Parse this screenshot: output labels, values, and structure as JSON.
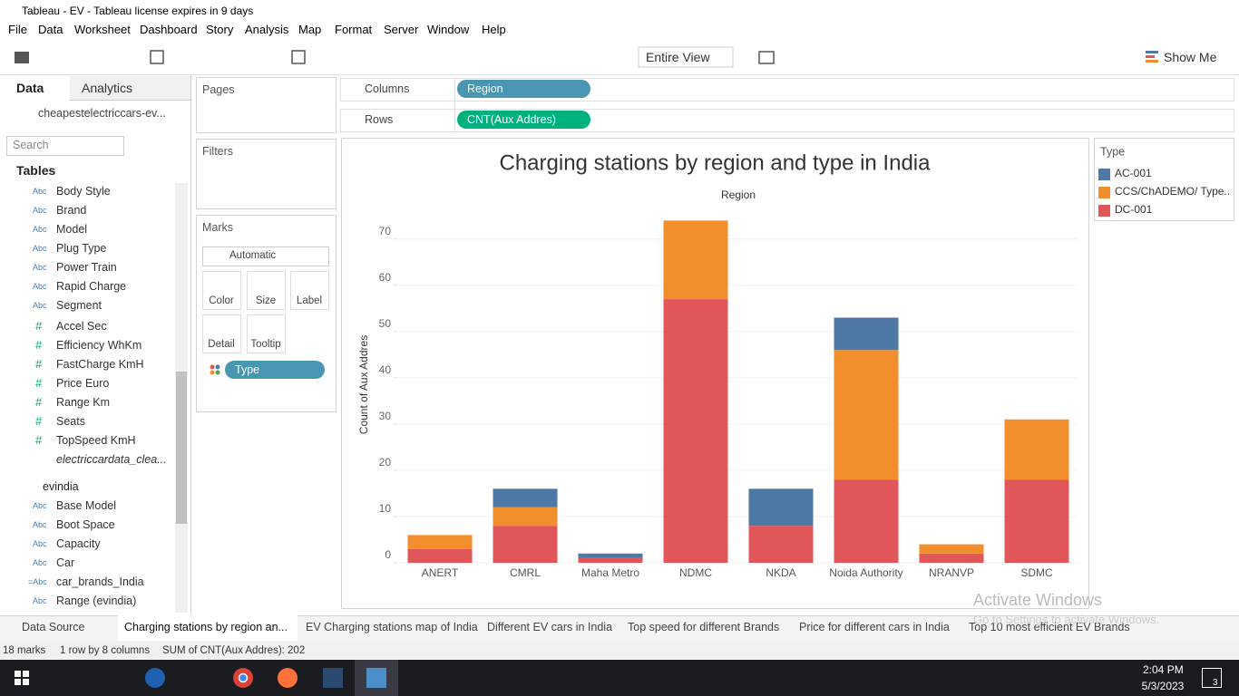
{
  "window": {
    "title": "Tableau - EV - Tableau license expires in 9 days"
  },
  "menu": [
    "File",
    "Data",
    "Worksheet",
    "Dashboard",
    "Story",
    "Analysis",
    "Map",
    "Format",
    "Server",
    "Window",
    "Help"
  ],
  "toolbar": {
    "fit": "Entire View",
    "show_me": "Show Me"
  },
  "data_pane": {
    "tabs": [
      "Data",
      "Analytics"
    ],
    "data_source": "cheapestelectriccars-ev...",
    "search": "Search",
    "tables_heading": "Tables",
    "fields": [
      {
        "icon": "Abc",
        "name": "Body Style"
      },
      {
        "icon": "Abc",
        "name": "Brand"
      },
      {
        "icon": "Abc",
        "name": "Model"
      },
      {
        "icon": "Abc",
        "name": "Plug Type"
      },
      {
        "icon": "Abc",
        "name": "Power Train"
      },
      {
        "icon": "Abc",
        "name": "Rapid Charge"
      },
      {
        "icon": "Abc",
        "name": "Segment"
      },
      {
        "icon": "#",
        "name": "Accel Sec"
      },
      {
        "icon": "#",
        "name": "Efficiency WhKm"
      },
      {
        "icon": "#",
        "name": "FastCharge KmH"
      },
      {
        "icon": "#",
        "name": "Price Euro"
      },
      {
        "icon": "#",
        "name": "Range Km"
      },
      {
        "icon": "#",
        "name": "Seats"
      },
      {
        "icon": "#",
        "name": "TopSpeed KmH"
      },
      {
        "name": "electriccardata_clea..."
      }
    ],
    "table2": "evindia",
    "fields2": [
      {
        "icon": "Abc",
        "name": "Base Model"
      },
      {
        "icon": "Abc",
        "name": "Boot Space"
      },
      {
        "icon": "Abc",
        "name": "Capacity"
      },
      {
        "icon": "Abc",
        "name": "Car"
      },
      {
        "icon": "=Abc",
        "name": "car_brands_India"
      },
      {
        "icon": "Abc",
        "name": "Range (evindia)"
      }
    ]
  },
  "shelves": {
    "pages": "Pages",
    "filters": "Filters",
    "marks": "Marks",
    "mark_type": "Automatic",
    "mark_buttons": [
      "Color",
      "Size",
      "Label",
      "Detail",
      "Tooltip"
    ],
    "type_pill": "Type",
    "columns": "Columns",
    "columns_pill": "Region",
    "rows": "Rows",
    "rows_pill": "CNT(Aux Addres)"
  },
  "chart_data": {
    "type": "bar",
    "stacked": true,
    "title": "Charging stations by region and type in India",
    "x_label": "Region",
    "y_label": "Count of Aux Addres",
    "legend_title": "Type",
    "categories": [
      "ANERT",
      "CMRL",
      "Maha Metro",
      "NDMC",
      "NKDA",
      "Noida Authority",
      "NRANVP",
      "SDMC"
    ],
    "series": [
      {
        "name": "AC-001",
        "color": "#4e79a7",
        "values": [
          0,
          4,
          1,
          0,
          8,
          7,
          0,
          0
        ]
      },
      {
        "name": "CCS/ChADEMO/ Type..",
        "color": "#f28e2b",
        "values": [
          3,
          4,
          0,
          17,
          0,
          28,
          2,
          13
        ]
      },
      {
        "name": "DC-001",
        "color": "#e15759",
        "values": [
          3,
          8,
          1,
          57,
          8,
          18,
          2,
          18
        ]
      }
    ],
    "ylim": [
      0,
      77
    ],
    "yticks": [
      0,
      10,
      20,
      30,
      40,
      50,
      60,
      70
    ],
    "grid": true
  },
  "sheet_tabs": [
    "Data Source",
    "Charging stations by region an...",
    "EV Charging stations map of India",
    "Different EV cars in India",
    "Top speed for different Brands",
    "Price for different cars in India",
    "Top 10 most efficient EV Brands"
  ],
  "status": [
    "18 marks",
    "1 row by 8 columns",
    "SUM of CNT(Aux Addres): 202"
  ],
  "watermark": [
    "Activate Windows",
    "Go to Settings to activate Windows."
  ],
  "taskbar": {
    "time": "2:04 PM",
    "date": "5/3/2023",
    "badge": "3"
  }
}
